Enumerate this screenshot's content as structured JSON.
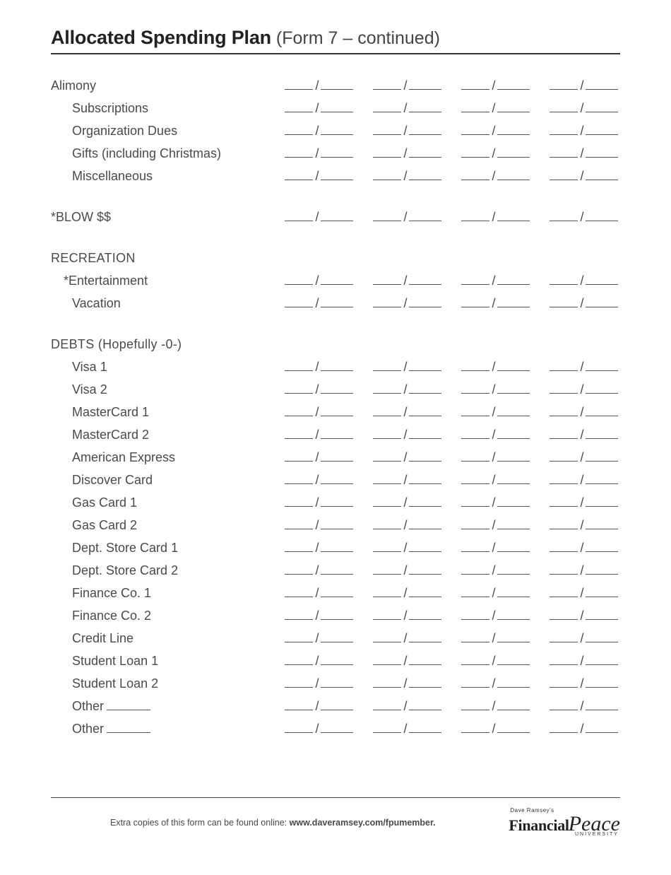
{
  "title": {
    "bold": "Allocated Spending Plan",
    "light": " (Form  7 – continued)"
  },
  "rows": [
    {
      "kind": "line",
      "class": "label-main",
      "label": "Alimony"
    },
    {
      "kind": "line",
      "class": "label-sub",
      "label": "Subscriptions"
    },
    {
      "kind": "line",
      "class": "label-sub",
      "label": "Organization Dues"
    },
    {
      "kind": "line",
      "class": "label-sub",
      "label": "Gifts (including Christmas)"
    },
    {
      "kind": "line",
      "class": "label-sub",
      "label": "Miscellaneous"
    },
    {
      "kind": "gap",
      "size": "big"
    },
    {
      "kind": "line",
      "class": "label-main",
      "label": "*BLOW $$"
    },
    {
      "kind": "gap",
      "size": "big"
    },
    {
      "kind": "header",
      "class": "label-head",
      "label": "RECREATION"
    },
    {
      "kind": "line",
      "class": "label-sub",
      "label": "*Entertainment",
      "labelPad": 18
    },
    {
      "kind": "line",
      "class": "label-sub",
      "label": "Vacation"
    },
    {
      "kind": "gap",
      "size": "big"
    },
    {
      "kind": "header",
      "class": "label-head",
      "label": "DEBTS (Hopefully -0-)"
    },
    {
      "kind": "line",
      "class": "label-sub",
      "label": "Visa 1"
    },
    {
      "kind": "line",
      "class": "label-sub",
      "label": "Visa 2"
    },
    {
      "kind": "line",
      "class": "label-sub",
      "label": "MasterCard 1"
    },
    {
      "kind": "line",
      "class": "label-sub",
      "label": "MasterCard 2"
    },
    {
      "kind": "line",
      "class": "label-sub",
      "label": "American Express"
    },
    {
      "kind": "line",
      "class": "label-sub",
      "label": "Discover Card"
    },
    {
      "kind": "line",
      "class": "label-sub",
      "label": "Gas Card 1"
    },
    {
      "kind": "line",
      "class": "label-sub",
      "label": "Gas Card 2"
    },
    {
      "kind": "line",
      "class": "label-sub",
      "label": "Dept. Store Card 1"
    },
    {
      "kind": "line",
      "class": "label-sub",
      "label": "Dept. Store Card 2"
    },
    {
      "kind": "line",
      "class": "label-sub",
      "label": "Finance Co. 1"
    },
    {
      "kind": "line",
      "class": "label-sub",
      "label": "Finance Co. 2"
    },
    {
      "kind": "line",
      "class": "label-sub",
      "label": "Credit Line"
    },
    {
      "kind": "line",
      "class": "label-sub",
      "label": "Student Loan 1"
    },
    {
      "kind": "line",
      "class": "label-sub",
      "label": "Student Loan 2"
    },
    {
      "kind": "line-other",
      "class": "label-sub",
      "label": "Other"
    },
    {
      "kind": "line-other",
      "class": "label-sub",
      "label": "Other"
    }
  ],
  "columns": 4,
  "footer": {
    "text_plain": "Extra copies of this form can be found online: ",
    "text_bold": "www.daveramsey.com/fpumember.",
    "logo_small": "Dave Ramsey's",
    "logo_fin": "Financial",
    "logo_peace": "Peace",
    "logo_uni": "UNIVERSITY"
  }
}
